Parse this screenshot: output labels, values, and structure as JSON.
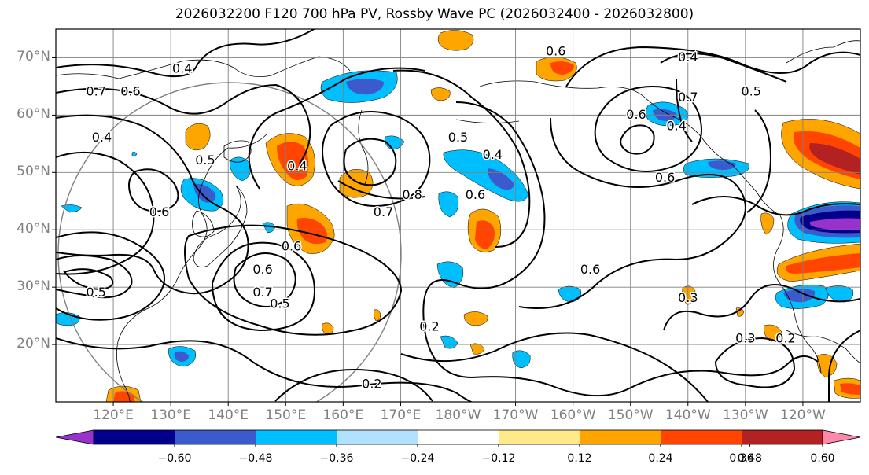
{
  "title": "2026032200 F120 700 hPa PV, Rossby Wave PC (2026032400 - 2026032800)",
  "axes": {
    "lat_labels": [
      {
        "lat": 70,
        "text": "70°N"
      },
      {
        "lat": 60,
        "text": "60°N"
      },
      {
        "lat": 50,
        "text": "50°N"
      },
      {
        "lat": 40,
        "text": "40°N"
      },
      {
        "lat": 30,
        "text": "30°N"
      },
      {
        "lat": 20,
        "text": "20°N"
      }
    ],
    "lon_labels": [
      {
        "lon": 120,
        "text": "120°E"
      },
      {
        "lon": 130,
        "text": "130°E"
      },
      {
        "lon": 140,
        "text": "140°E"
      },
      {
        "lon": 150,
        "text": "150°E"
      },
      {
        "lon": 160,
        "text": "160°E"
      },
      {
        "lon": 170,
        "text": "170°E"
      },
      {
        "lon": 180,
        "text": "180°W"
      },
      {
        "lon": 190,
        "text": "170°W"
      },
      {
        "lon": 200,
        "text": "160°W"
      },
      {
        "lon": 210,
        "text": "150°W"
      },
      {
        "lon": 220,
        "text": "140°W"
      },
      {
        "lon": 230,
        "text": "130°W"
      },
      {
        "lon": 240,
        "text": "120°W"
      }
    ],
    "lon_range": [
      110,
      250
    ],
    "lat_range": [
      10,
      75
    ],
    "grid": true
  },
  "colorbar": {
    "colors": [
      "#9932cc",
      "#00008b",
      "#3b5bcc",
      "#00bfff",
      "#b0e2ff",
      "#ffffff",
      "#ffe98a",
      "#ffa500",
      "#ff4500",
      "#b22222",
      "#ff88aa"
    ],
    "extend": "both",
    "tick_labels": [
      {
        "value": -0.6,
        "text": "−0.60"
      },
      {
        "value": -0.48,
        "text": "−0.48"
      },
      {
        "value": -0.36,
        "text": "−0.36"
      },
      {
        "value": -0.24,
        "text": "−0.24"
      },
      {
        "value": -0.12,
        "text": "−0.12"
      },
      {
        "value": 0.12,
        "text": "0.12"
      },
      {
        "value": 0.24,
        "text": "0.24"
      },
      {
        "value": 0.36,
        "text": "0.36"
      },
      {
        "value": 0.48,
        "text": "0.48"
      },
      {
        "value": 0.6,
        "text": "0.60"
      }
    ]
  },
  "contour_labels": [
    {
      "lon": 117,
      "lat": 64,
      "text": "0.7"
    },
    {
      "lon": 123,
      "lat": 64,
      "text": "0.6"
    },
    {
      "lon": 118,
      "lat": 56,
      "text": "0.4"
    },
    {
      "lon": 132,
      "lat": 68,
      "text": "0.4"
    },
    {
      "lon": 136,
      "lat": 52,
      "text": "0.5"
    },
    {
      "lon": 128,
      "lat": 43,
      "text": "0.6"
    },
    {
      "lon": 146,
      "lat": 33,
      "text": "0.6"
    },
    {
      "lon": 151,
      "lat": 37,
      "text": "0.6"
    },
    {
      "lon": 146,
      "lat": 29,
      "text": "0.7"
    },
    {
      "lon": 149,
      "lat": 27,
      "text": "0.5"
    },
    {
      "lon": 117,
      "lat": 29,
      "text": "0.5"
    },
    {
      "lon": 152,
      "lat": 51,
      "text": "0.4"
    },
    {
      "lon": 167,
      "lat": 43,
      "text": "0.7"
    },
    {
      "lon": 172,
      "lat": 46,
      "text": "0.8"
    },
    {
      "lon": 180,
      "lat": 56,
      "text": "0.5"
    },
    {
      "lon": 186,
      "lat": 53,
      "text": "0.4"
    },
    {
      "lon": 183,
      "lat": 46,
      "text": "0.6"
    },
    {
      "lon": 197,
      "lat": 71,
      "text": "0.6"
    },
    {
      "lon": 220,
      "lat": 70,
      "text": "0.4"
    },
    {
      "lon": 220,
      "lat": 63,
      "text": "0.7"
    },
    {
      "lon": 211,
      "lat": 60,
      "text": "0.6"
    },
    {
      "lon": 231,
      "lat": 64,
      "text": "0.5"
    },
    {
      "lon": 218,
      "lat": 58,
      "text": "0.4"
    },
    {
      "lon": 216,
      "lat": 49,
      "text": "0.6"
    },
    {
      "lon": 203,
      "lat": 33,
      "text": "0.6"
    },
    {
      "lon": 220,
      "lat": 28,
      "text": "0.3"
    },
    {
      "lon": 175,
      "lat": 23,
      "text": "0.2"
    },
    {
      "lon": 165,
      "lat": 13,
      "text": "0.2"
    },
    {
      "lon": 230,
      "lat": 21,
      "text": "0.3"
    },
    {
      "lon": 237,
      "lat": 21,
      "text": "0.2"
    }
  ]
}
